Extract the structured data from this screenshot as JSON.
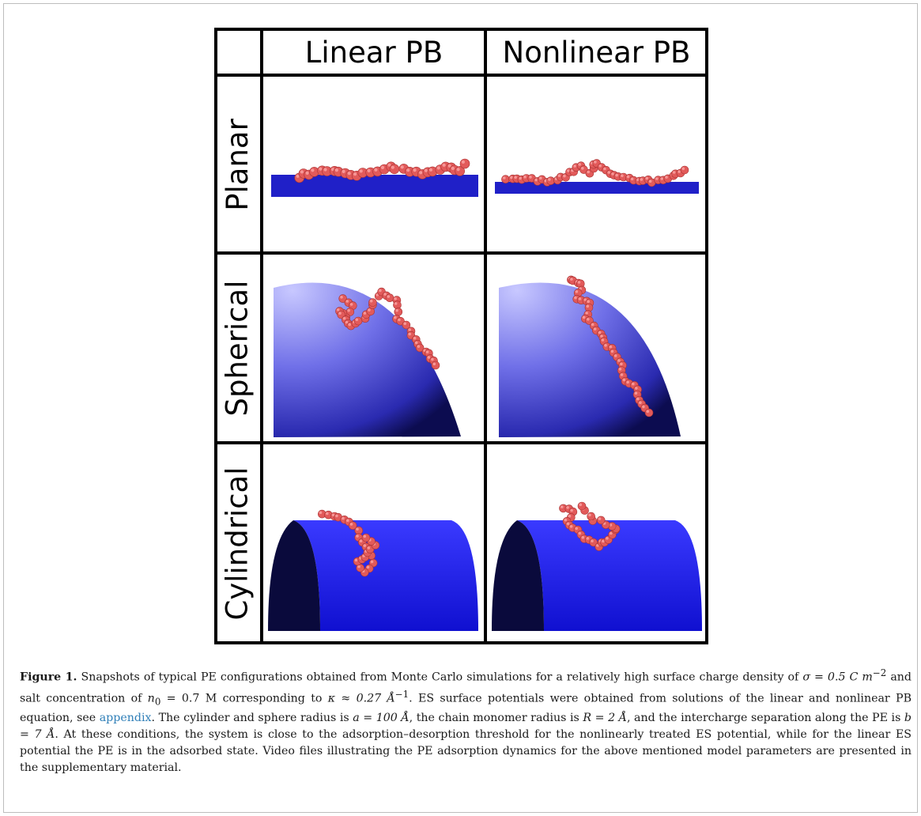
{
  "figure": {
    "column_headers": [
      "Linear PB",
      "Nonlinear PB"
    ],
    "row_labels": [
      "Planar",
      "Spherical",
      "Cylindrical"
    ],
    "colors": {
      "surface_blue": "#1e1ed2",
      "surface_dark": "#0a0a3c",
      "bead_red": "#e25a5a",
      "sphere_light": "#b4b4ff"
    }
  },
  "caption": {
    "label": "Figure 1.",
    "text_1": "Snapshots of typical PE configurations obtained from Monte Carlo simulations for a relatively high surface charge density of ",
    "sigma": "σ = 0.5 C m",
    "sigma_exp": "−2",
    "text_2": " and salt concentration of ",
    "n0": "n",
    "n0_sub": "0",
    "n0_val": " = 0.7 M corresponding to ",
    "kappa": "κ ≈ 0.27 Å",
    "kappa_exp": "−1",
    "text_3": ". ES surface potentials were obtained from solutions of the linear and nonlinear PB equation, see ",
    "link": "appendix",
    "text_4": ". The cylinder and sphere radius is ",
    "a_val": "a = 100 Å",
    "text_5": ", the chain monomer radius is ",
    "R_val": "R = 2 Å",
    "text_6": ", and the intercharge separation along the PE is ",
    "b_val": "b = 7 Å",
    "text_7": ". At these conditions, the system is close to the adsorption–desorption threshold for the nonlinearly treated ES potential, while for the linear ES potential the PE is in the adsorbed state. Video files illustrating the PE adsorption dynamics for the above mentioned model parameters are presented in the supplementary material."
  }
}
